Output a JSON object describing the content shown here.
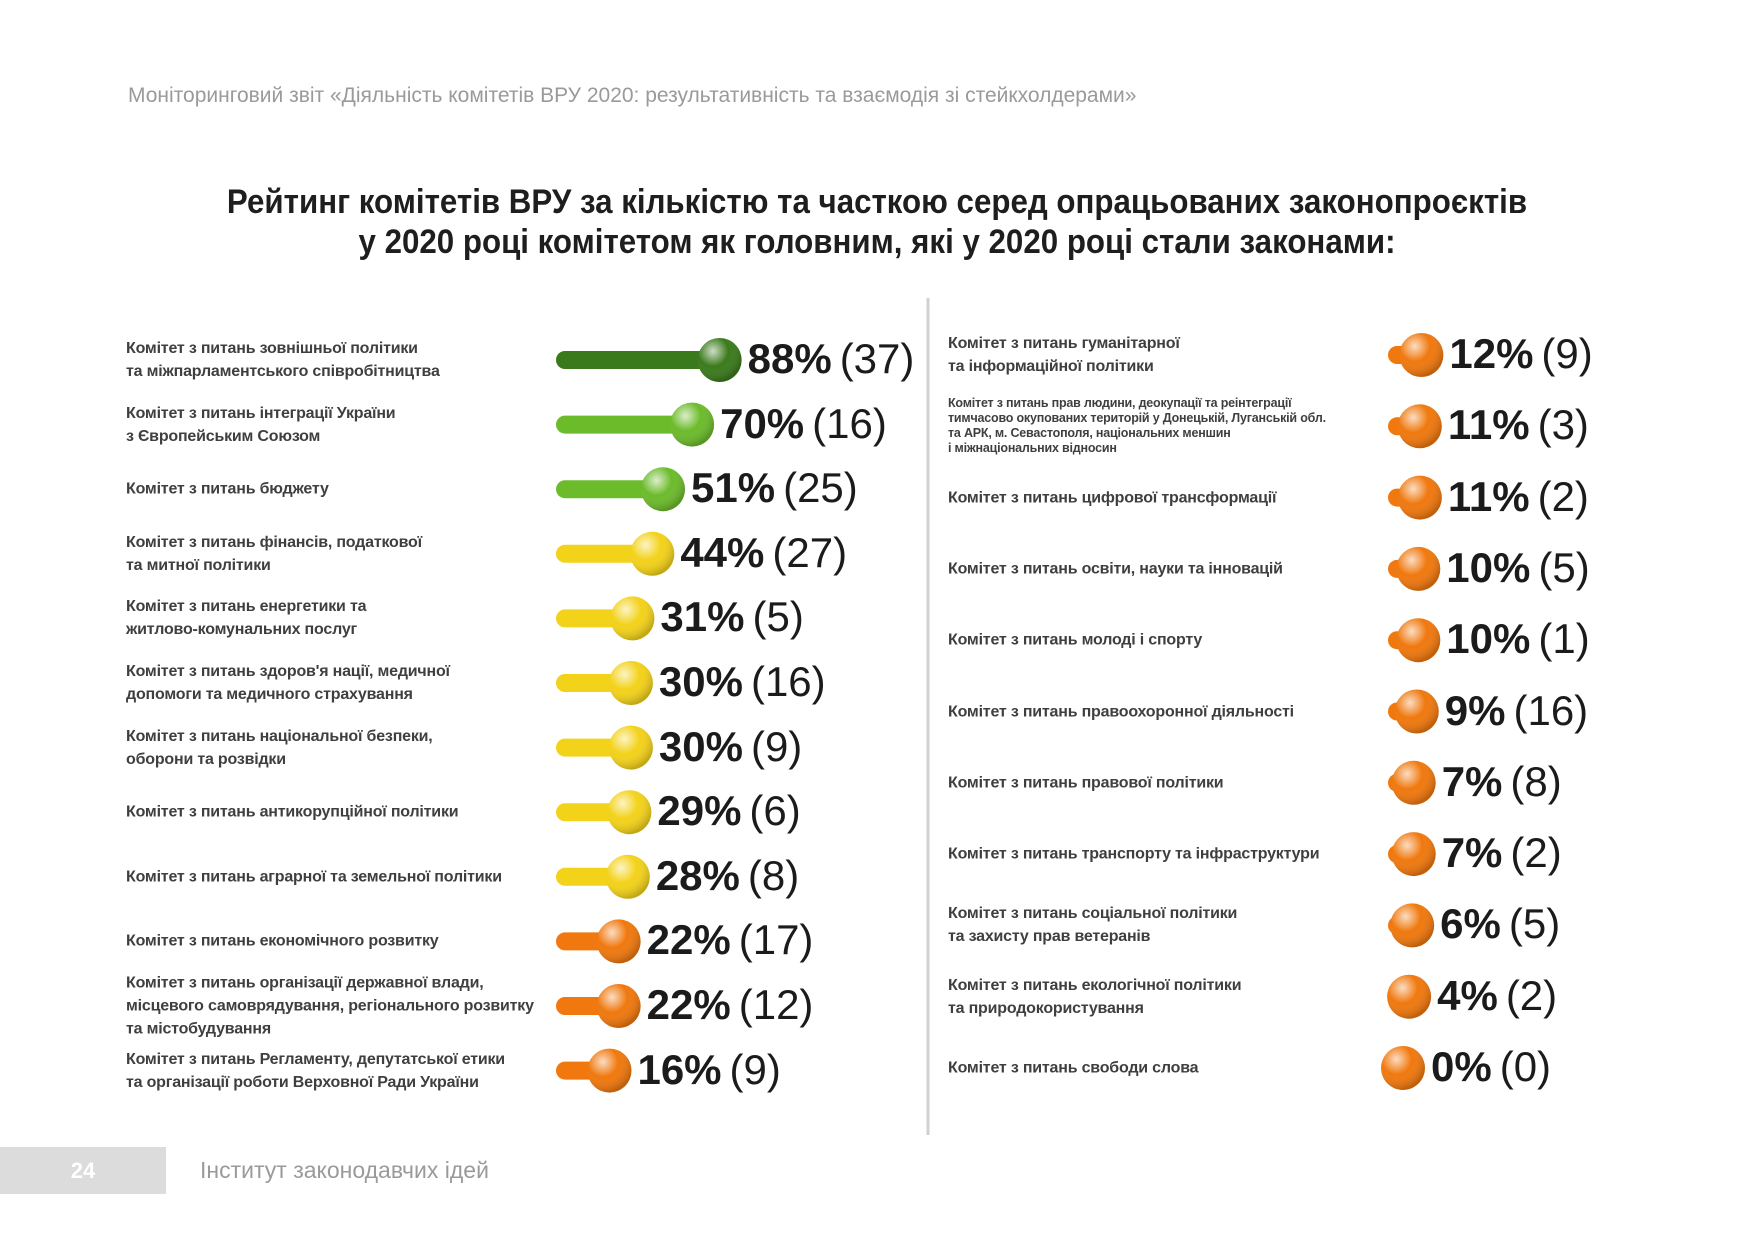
{
  "header": "Моніторинговий звіт «Діяльність комітетів ВРУ 2020: результативність та взаємодія зі стейкхолдерами»",
  "title": "Рейтинг комітетів ВРУ за кількістю та часткою серед опрацьованих законопроєктів\nу 2020 році комітетом як головним, які у 2020 році стали законами:",
  "footer": {
    "page": "24",
    "org": "Інститут законодавчих ідей"
  },
  "chart_data": [
    {
      "type": "bar",
      "xlim": [
        0,
        100
      ],
      "categories": [
        "Комітет з питань зовнішньої політики\nта міжпарламентського співробітництва",
        "Комітет з питань інтеграції України\nз Європейським Союзом",
        "Комітет з питань бюджету",
        "Комітет з питань фінансів, податкової\nта митної політики",
        "Комітет з питань енергетики та\nжитлово-комунальних послуг",
        "Комітет з питань здоров'я нації, медичної\nдопомоги та медичного страхування",
        "Комітет з питань національної безпеки,\nоборони та розвідки",
        "Комітет з питань антикорупційної політики",
        "Комітет з питань аграрної та земельної політики",
        "Комітет з питань економічного розвитку",
        "Комітет з питань організації державної влади,\nмісцевого самоврядування, регіонального розвитку\nта містобудування",
        "Комітет з питань Регламенту, депутатської етики\nта організації роботи Верховної Ради України"
      ],
      "values": [
        88,
        70,
        51,
        44,
        31,
        30,
        30,
        29,
        28,
        22,
        22,
        16
      ],
      "value_labels": [
        "88%",
        "70%",
        "51%",
        "44%",
        "31%",
        "30%",
        "30%",
        "29%",
        "28%",
        "22%",
        "22%",
        "16%"
      ],
      "count_labels": [
        "(37)",
        "(16)",
        "(25)",
        "(27)",
        "(5)",
        "(16)",
        "(9)",
        "(6)",
        "(8)",
        "(17)",
        "(12)",
        "(9)"
      ],
      "colors": [
        "#3b7a1c",
        "#6cbb2b",
        "#6cbb2b",
        "#f3d21a",
        "#f3d21a",
        "#f3d21a",
        "#f3d21a",
        "#f3d21a",
        "#f3d21a",
        "#f0780e",
        "#f0780e",
        "#f0780e"
      ]
    },
    {
      "type": "bar",
      "xlim": [
        0,
        100
      ],
      "categories": [
        "Комітет з питань гуманітарної\nта інформаційної політики",
        "Комітет з питань прав людини, деокупації та реінтеграції\nтимчасово окупованих територій у Донецькій, Луганській обл.\nта АРК, м. Севастополя, національних меншин\nі міжнаціональних відносин",
        "Комітет з питань цифрової трансформації",
        "Комітет з питань освіти, науки та інновацій",
        "Комітет з питань молоді і спорту",
        "Комітет з питань правоохоронної діяльності",
        "Комітет з питань правової політики",
        "Комітет з питань транспорту та інфраструктури",
        "Комітет з питань соціальної політики\nта захисту прав ветеранів",
        "Комітет з питань екологічної політики\nта природокористування",
        "Комітет з питань свободи слова"
      ],
      "values": [
        12,
        11,
        11,
        10,
        10,
        9,
        7,
        7,
        6,
        4,
        0
      ],
      "value_labels": [
        "12%",
        "11%",
        "11%",
        "10%",
        "10%",
        "9%",
        "7%",
        "7%",
        "6%",
        "4%",
        "0%"
      ],
      "count_labels": [
        "(9)",
        "(3)",
        "(2)",
        "(5)",
        "(1)",
        "(16)",
        "(8)",
        "(2)",
        "(5)",
        "(2)",
        "(0)"
      ],
      "colors": [
        "#f0780e",
        "#f0780e",
        "#f0780e",
        "#f0780e",
        "#f0780e",
        "#f0780e",
        "#f0780e",
        "#f0780e",
        "#f0780e",
        "#f0780e",
        "#f0780e"
      ]
    }
  ]
}
